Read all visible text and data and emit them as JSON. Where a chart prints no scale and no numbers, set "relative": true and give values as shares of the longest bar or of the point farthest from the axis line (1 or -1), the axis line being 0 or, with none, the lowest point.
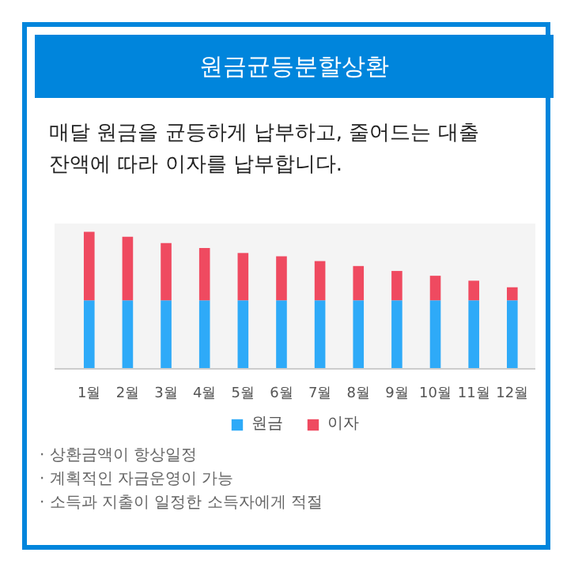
{
  "chart_data": {
    "type": "bar",
    "title": "원금균등분할상환",
    "subtitle": "매달 원금을 균등하게 납부하고, 줄어드는 대출 잔액에 따라 이자를 납부합니다.",
    "categories": [
      "1월",
      "2월",
      "3월",
      "4월",
      "5월",
      "6월",
      "7월",
      "8월",
      "9월",
      "10월",
      "11월",
      "12월"
    ],
    "stacked": true,
    "relative": true,
    "legend": "bottom",
    "series": [
      {
        "name": "원금",
        "color": "#2eaaf8",
        "values": [
          0.5,
          0.5,
          0.5,
          0.5,
          0.5,
          0.5,
          0.5,
          0.5,
          0.5,
          0.5,
          0.5,
          0.5
        ]
      },
      {
        "name": "이자",
        "color": "#ef4a60",
        "values": [
          0.5,
          0.464,
          0.417,
          0.381,
          0.345,
          0.321,
          0.286,
          0.25,
          0.214,
          0.179,
          0.143,
          0.095
        ]
      }
    ],
    "annotations": [
      "· 상환금액이 항상일정",
      "· 계획적인 자금운영이 가능",
      "· 소득과 지출이 일정한 소득자에게 적절"
    ]
  }
}
